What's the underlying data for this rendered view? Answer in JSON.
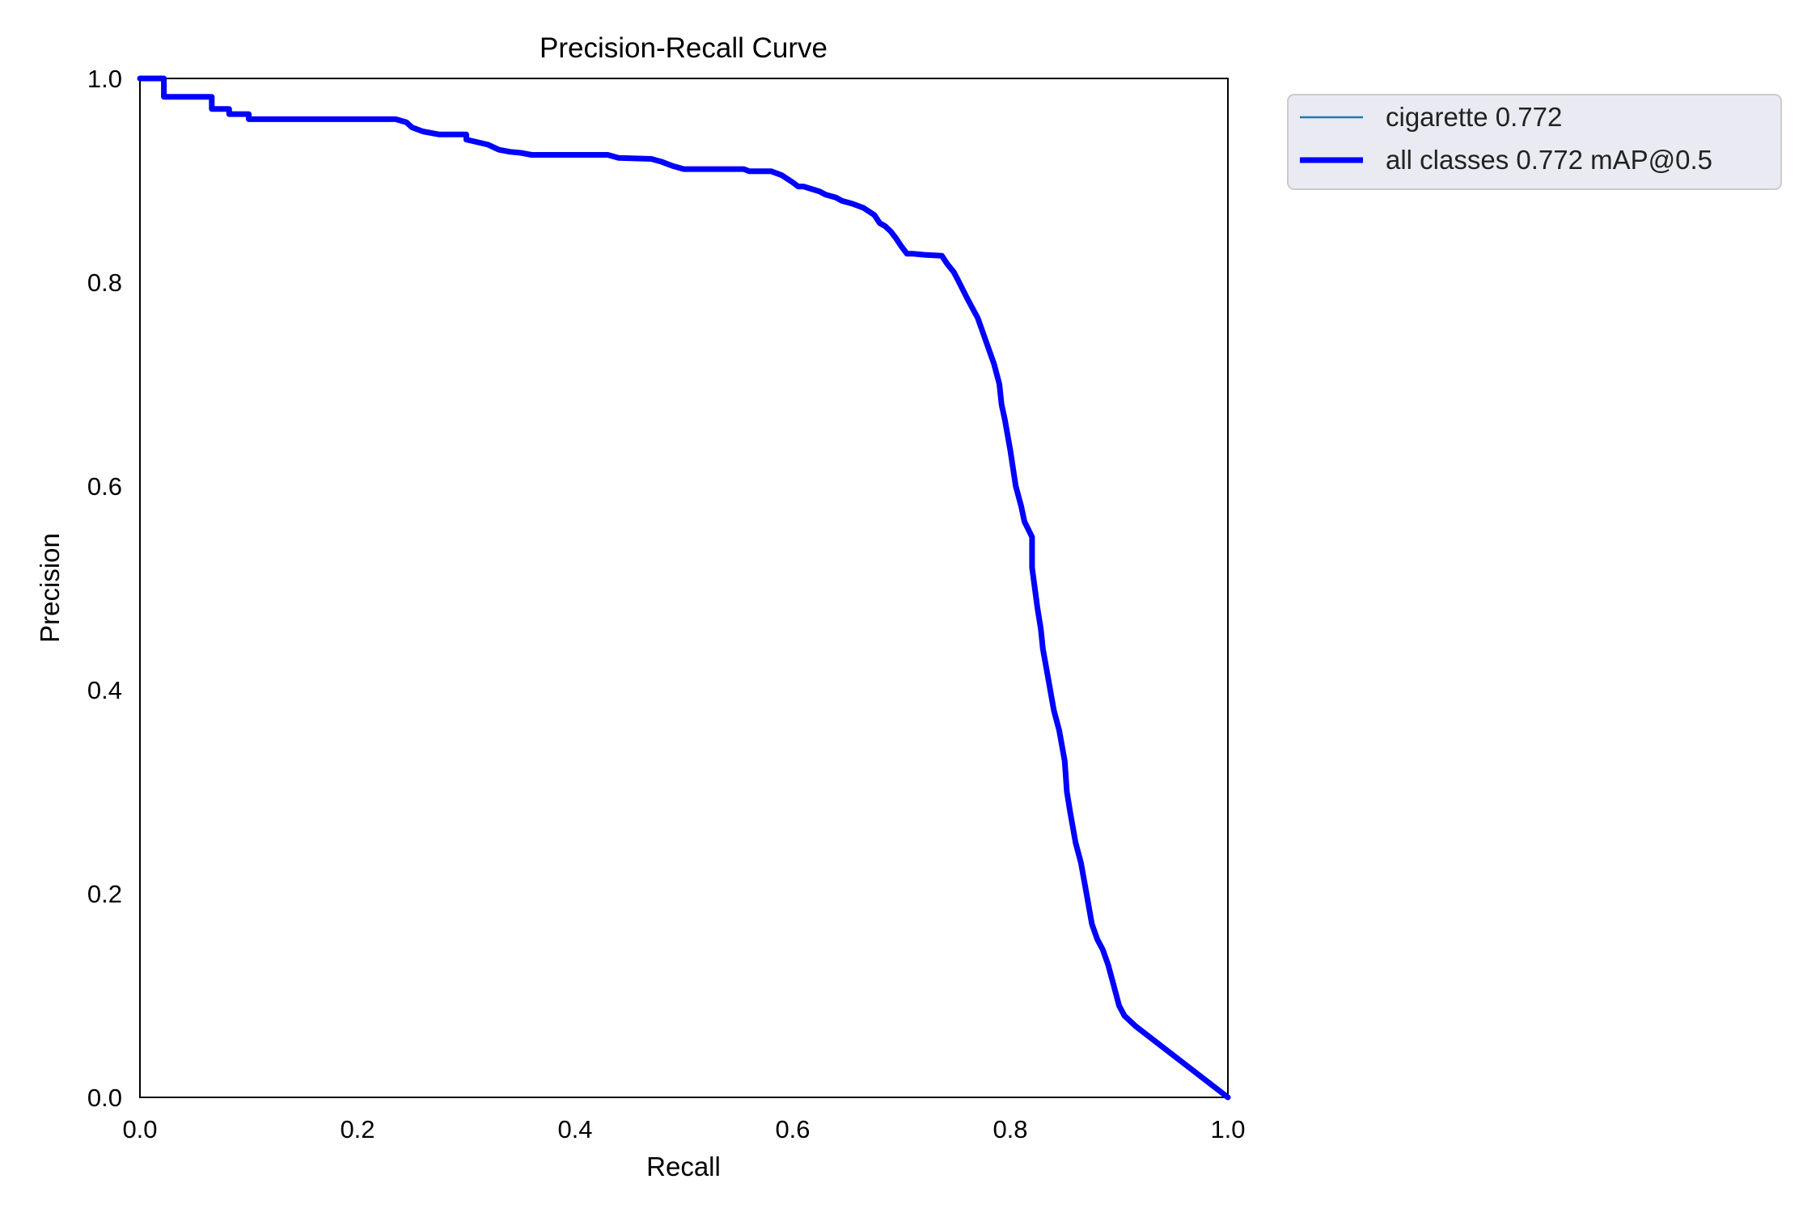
{
  "chart_data": {
    "type": "line",
    "title": "Precision-Recall Curve",
    "xlabel": "Recall",
    "ylabel": "Precision",
    "xlim": [
      0.0,
      1.0
    ],
    "ylim": [
      0.0,
      1.0
    ],
    "xticks": [
      "0.0",
      "0.2",
      "0.4",
      "0.6",
      "0.8",
      "1.0"
    ],
    "yticks": [
      "0.0",
      "0.2",
      "0.4",
      "0.6",
      "0.8",
      "1.0"
    ],
    "grid": false,
    "legend_placement": "outside-top-right",
    "series": [
      {
        "name": "cigarette 0.772",
        "color": "#1f77b4",
        "style": "thin",
        "x": [
          0.0,
          0.022,
          0.022,
          0.066,
          0.066,
          0.082,
          0.082,
          0.1,
          0.1,
          0.235,
          0.245,
          0.25,
          0.26,
          0.275,
          0.3,
          0.3,
          0.32,
          0.33,
          0.34,
          0.35,
          0.36,
          0.43,
          0.44,
          0.47,
          0.48,
          0.49,
          0.5,
          0.555,
          0.56,
          0.58,
          0.59,
          0.6,
          0.605,
          0.61,
          0.625,
          0.63,
          0.64,
          0.645,
          0.655,
          0.665,
          0.675,
          0.68,
          0.685,
          0.69,
          0.695,
          0.7,
          0.705,
          0.71,
          0.72,
          0.737,
          0.742,
          0.748,
          0.752,
          0.76,
          0.765,
          0.77,
          0.775,
          0.78,
          0.785,
          0.79,
          0.792,
          0.795,
          0.8,
          0.805,
          0.81,
          0.813,
          0.82,
          0.82,
          0.825,
          0.828,
          0.83,
          0.835,
          0.84,
          0.845,
          0.85,
          0.852,
          0.855,
          0.86,
          0.865,
          0.87,
          0.875,
          0.88,
          0.885,
          0.89,
          0.895,
          0.9,
          0.905,
          0.91,
          0.915,
          1.0
        ],
        "y": [
          1.0,
          1.0,
          0.982,
          0.982,
          0.97,
          0.97,
          0.965,
          0.965,
          0.96,
          0.96,
          0.957,
          0.952,
          0.948,
          0.945,
          0.945,
          0.94,
          0.935,
          0.93,
          0.928,
          0.927,
          0.925,
          0.925,
          0.922,
          0.921,
          0.918,
          0.914,
          0.911,
          0.911,
          0.909,
          0.909,
          0.905,
          0.898,
          0.894,
          0.894,
          0.889,
          0.886,
          0.883,
          0.88,
          0.877,
          0.873,
          0.866,
          0.858,
          0.855,
          0.85,
          0.843,
          0.835,
          0.828,
          0.828,
          0.827,
          0.826,
          0.818,
          0.81,
          0.802,
          0.785,
          0.775,
          0.765,
          0.75,
          0.735,
          0.72,
          0.7,
          0.68,
          0.665,
          0.635,
          0.6,
          0.58,
          0.565,
          0.55,
          0.52,
          0.48,
          0.46,
          0.44,
          0.41,
          0.38,
          0.36,
          0.33,
          0.3,
          0.28,
          0.25,
          0.23,
          0.2,
          0.17,
          0.155,
          0.145,
          0.13,
          0.11,
          0.09,
          0.08,
          0.075,
          0.07,
          0.0
        ]
      },
      {
        "name": "all classes 0.772 mAP@0.5",
        "color": "#0000ff",
        "style": "thick",
        "x": [
          0.0,
          0.022,
          0.022,
          0.066,
          0.066,
          0.082,
          0.082,
          0.1,
          0.1,
          0.235,
          0.245,
          0.25,
          0.26,
          0.275,
          0.3,
          0.3,
          0.32,
          0.33,
          0.34,
          0.35,
          0.36,
          0.43,
          0.44,
          0.47,
          0.48,
          0.49,
          0.5,
          0.555,
          0.56,
          0.58,
          0.59,
          0.6,
          0.605,
          0.61,
          0.625,
          0.63,
          0.64,
          0.645,
          0.655,
          0.665,
          0.675,
          0.68,
          0.685,
          0.69,
          0.695,
          0.7,
          0.705,
          0.71,
          0.72,
          0.737,
          0.742,
          0.748,
          0.752,
          0.76,
          0.765,
          0.77,
          0.775,
          0.78,
          0.785,
          0.79,
          0.792,
          0.795,
          0.8,
          0.805,
          0.81,
          0.813,
          0.82,
          0.82,
          0.825,
          0.828,
          0.83,
          0.835,
          0.84,
          0.845,
          0.85,
          0.852,
          0.855,
          0.86,
          0.865,
          0.87,
          0.875,
          0.88,
          0.885,
          0.89,
          0.895,
          0.9,
          0.905,
          0.91,
          0.915,
          1.0
        ],
        "y": [
          1.0,
          1.0,
          0.982,
          0.982,
          0.97,
          0.97,
          0.965,
          0.965,
          0.96,
          0.96,
          0.957,
          0.952,
          0.948,
          0.945,
          0.945,
          0.94,
          0.935,
          0.93,
          0.928,
          0.927,
          0.925,
          0.925,
          0.922,
          0.921,
          0.918,
          0.914,
          0.911,
          0.911,
          0.909,
          0.909,
          0.905,
          0.898,
          0.894,
          0.894,
          0.889,
          0.886,
          0.883,
          0.88,
          0.877,
          0.873,
          0.866,
          0.858,
          0.855,
          0.85,
          0.843,
          0.835,
          0.828,
          0.828,
          0.827,
          0.826,
          0.818,
          0.81,
          0.802,
          0.785,
          0.775,
          0.765,
          0.75,
          0.735,
          0.72,
          0.7,
          0.68,
          0.665,
          0.635,
          0.6,
          0.58,
          0.565,
          0.55,
          0.52,
          0.48,
          0.46,
          0.44,
          0.41,
          0.38,
          0.36,
          0.33,
          0.3,
          0.28,
          0.25,
          0.23,
          0.2,
          0.17,
          0.155,
          0.145,
          0.13,
          0.11,
          0.09,
          0.08,
          0.075,
          0.07,
          0.0
        ]
      }
    ]
  }
}
